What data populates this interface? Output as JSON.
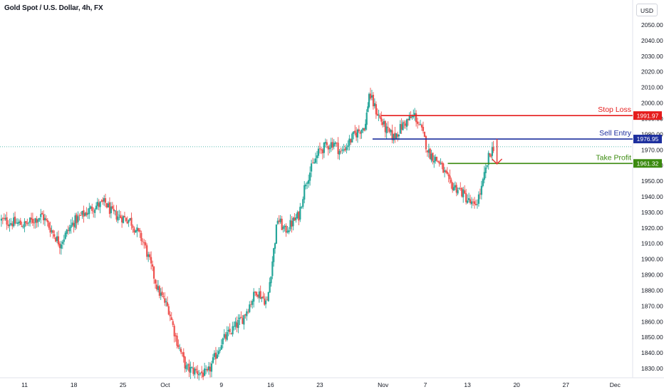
{
  "header": {
    "title": "Gold Spot / U.S. Dollar, 4h, FX",
    "currency_button": "USD"
  },
  "colors": {
    "up": "#26a69a",
    "down": "#ef5350",
    "stop_loss": "#e51c1c",
    "sell_entry": "#1d2f9e",
    "take_profit": "#3a8a0e",
    "arrow": "#e53935",
    "current_price_line": "#26a69a"
  },
  "chart_data": {
    "type": "candlestick",
    "title": "Gold Spot / U.S. Dollar, 4h, FX",
    "y_axis": {
      "ticks": [
        1830,
        1840,
        1850,
        1860,
        1870,
        1880,
        1890,
        1900,
        1910,
        1920,
        1930,
        1940,
        1950,
        1960,
        1970,
        1980,
        1990,
        2000,
        2010,
        2020,
        2030,
        2040,
        2050
      ],
      "tick_labels": [
        "1830.00",
        "1840.00",
        "1850.00",
        "1860.00",
        "1870.00",
        "1880.00",
        "1890.00",
        "1900.00",
        "1910.00",
        "1920.00",
        "1930.00",
        "1940.00",
        "1950.00",
        "1960.00",
        "1970.00",
        "1980.00",
        "1990.00",
        "2000.00",
        "2010.00",
        "2020.00",
        "2030.00",
        "2040.00",
        "2050.00"
      ],
      "range": [
        1824,
        2058
      ]
    },
    "x_axis": {
      "labels": [
        "11",
        "18",
        "25",
        "Oct",
        "9",
        "16",
        "23",
        "Nov",
        "7",
        "13",
        "20",
        "27",
        "Dec"
      ],
      "label_days": [
        0,
        7,
        14,
        20,
        28,
        35,
        42,
        51,
        57,
        63,
        70,
        77,
        84
      ],
      "range_days": [
        -3.5,
        86.5
      ]
    },
    "levels": [
      {
        "name": "Stop Loss",
        "value": 1991.97,
        "label": "1991.97",
        "start_day": 50.7
      },
      {
        "name": "Sell Entry",
        "value": 1976.95,
        "label": "1976.95",
        "start_day": 49.5
      },
      {
        "name": "Take Profit",
        "value": 1961.32,
        "label": "1961.32",
        "start_day": 60.2
      }
    ],
    "current_price": 1972,
    "arrow": {
      "from_day": 67.2,
      "from_value": 1977,
      "to_day": 67.2,
      "to_value": 1961
    },
    "key_points": [
      {
        "day": -3.5,
        "close": 1925
      },
      {
        "day": 0,
        "close": 1922
      },
      {
        "day": 2.5,
        "close": 1928
      },
      {
        "day": 5,
        "close": 1910
      },
      {
        "day": 7,
        "close": 1924
      },
      {
        "day": 10,
        "close": 1934
      },
      {
        "day": 11.5,
        "close": 1936
      },
      {
        "day": 12.5,
        "close": 1929
      },
      {
        "day": 15,
        "close": 1925
      },
      {
        "day": 17,
        "close": 1910
      },
      {
        "day": 19,
        "close": 1880
      },
      {
        "day": 20.5,
        "close": 1868
      },
      {
        "day": 21.5,
        "close": 1850
      },
      {
        "day": 23,
        "close": 1830
      },
      {
        "day": 26,
        "close": 1826
      },
      {
        "day": 28,
        "close": 1847
      },
      {
        "day": 31,
        "close": 1862
      },
      {
        "day": 33,
        "close": 1880
      },
      {
        "day": 34.5,
        "close": 1872
      },
      {
        "day": 36,
        "close": 1926
      },
      {
        "day": 37,
        "close": 1918
      },
      {
        "day": 39,
        "close": 1928
      },
      {
        "day": 40,
        "close": 1950
      },
      {
        "day": 42,
        "close": 1970
      },
      {
        "day": 44,
        "close": 1975
      },
      {
        "day": 45,
        "close": 1968
      },
      {
        "day": 47,
        "close": 1980
      },
      {
        "day": 48.5,
        "close": 1986
      },
      {
        "day": 49,
        "close": 2006
      },
      {
        "day": 50,
        "close": 1995
      },
      {
        "day": 51.5,
        "close": 1982
      },
      {
        "day": 52.5,
        "close": 1978
      },
      {
        "day": 54,
        "close": 1987
      },
      {
        "day": 55.5,
        "close": 1992
      },
      {
        "day": 56.5,
        "close": 1982
      },
      {
        "day": 57.5,
        "close": 1968
      },
      {
        "day": 59,
        "close": 1962
      },
      {
        "day": 60.5,
        "close": 1948
      },
      {
        "day": 62,
        "close": 1944
      },
      {
        "day": 63,
        "close": 1938
      },
      {
        "day": 64,
        "close": 1933
      },
      {
        "day": 65,
        "close": 1945
      },
      {
        "day": 66,
        "close": 1965
      },
      {
        "day": 66.7,
        "close": 1972
      }
    ]
  }
}
